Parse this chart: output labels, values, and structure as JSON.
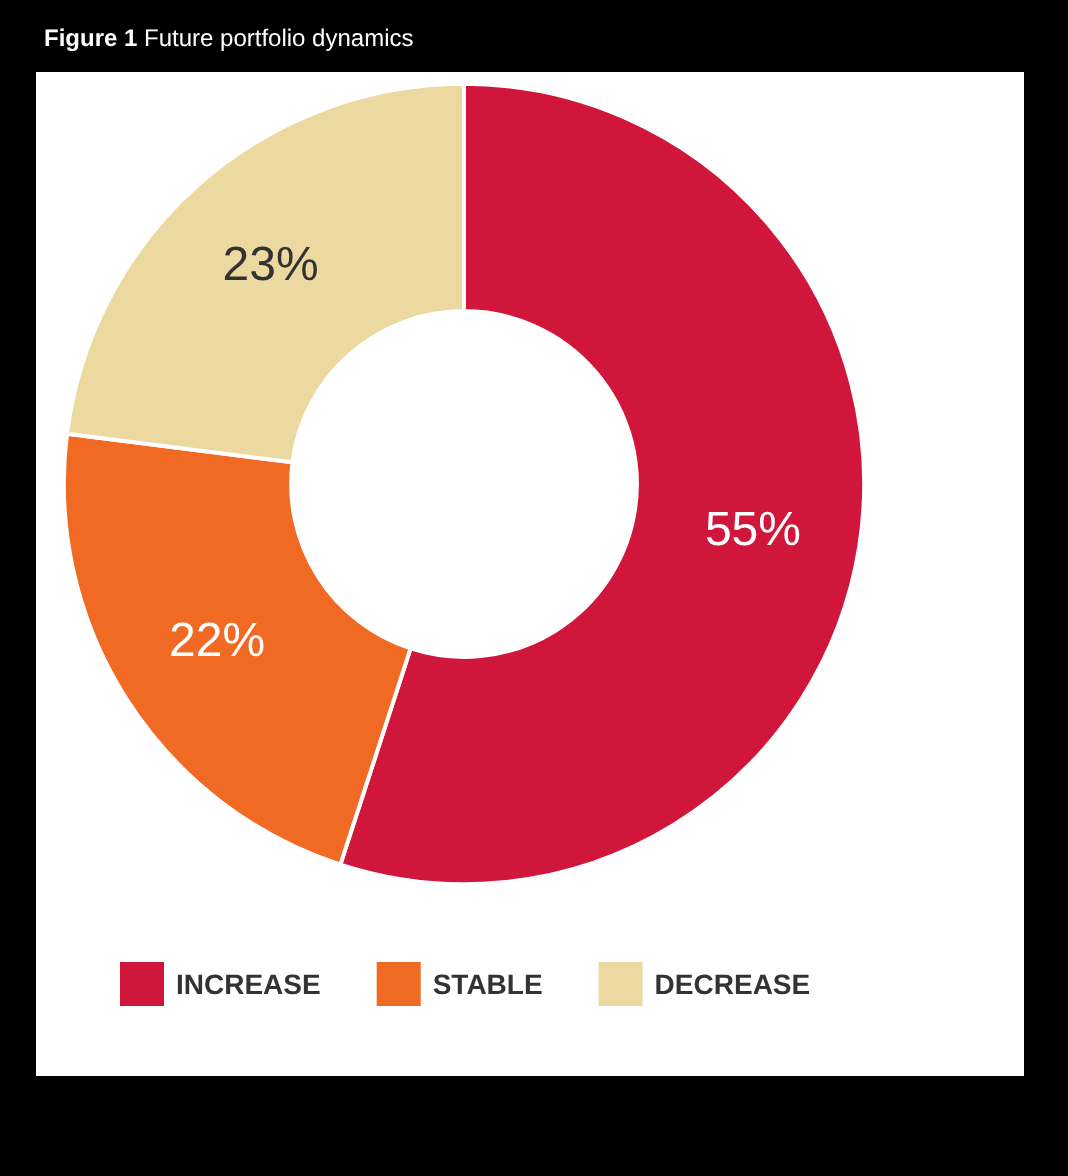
{
  "chart_data": {
    "type": "donut",
    "title": "Figure 1 Future portfolio dynamics",
    "categories": [
      "INCREASE",
      "STABLE",
      "DECREASE"
    ],
    "values": [
      55,
      22,
      23
    ],
    "colors": [
      "#d0163a",
      "#f06a24",
      "#ecd9a0"
    ],
    "value_labels": [
      "55%",
      "22%",
      "23%"
    ],
    "legend": "bottom left"
  }
}
